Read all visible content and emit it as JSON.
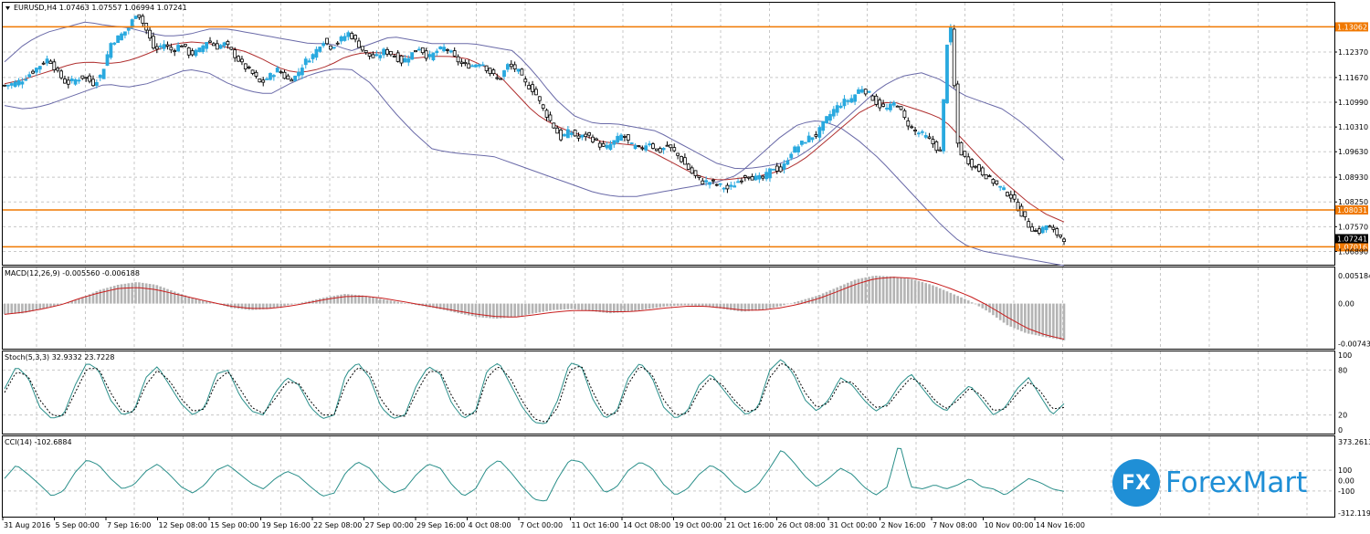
{
  "window": {
    "symbol_header": "EURUSD,H4  1.07463 1.07557 1.06994 1.07241"
  },
  "colors": {
    "bull_candle": "#29a9df",
    "bear_candle": "#000000",
    "bollinger": "#6a6aa8",
    "ma": "#b03030",
    "hline": "#f07800",
    "macd_hist": "#b4b4b4",
    "macd_signal": "#c81e1e",
    "stoch_main": "#2a8f8a",
    "stoch_signal": "#000000",
    "cci": "#2a8f8a",
    "grid": "#c8c8c8",
    "brand": "#1f8fd6"
  },
  "price_pane": {
    "ylim": [
      1.0655,
      1.137
    ],
    "tick_labels": [
      "1.12370",
      "1.11670",
      "1.10990",
      "1.10310",
      "1.09630",
      "1.08930",
      "1.08250",
      "1.07570",
      "1.06890"
    ],
    "tick_values": [
      1.1237,
      1.1167,
      1.1099,
      1.1031,
      1.0963,
      1.0893,
      1.0825,
      1.0757,
      1.0689
    ],
    "hlines": [
      {
        "value": 1.13062,
        "label": "1.13062"
      },
      {
        "value": 1.08031,
        "label": "1.08031"
      },
      {
        "value": 1.07016,
        "label": "1.07016"
      }
    ],
    "current_price": {
      "value": 1.07241,
      "label": "1.07241"
    },
    "close_path": [
      1.1145,
      1.115,
      1.116,
      1.118,
      1.12,
      1.122,
      1.118,
      1.115,
      1.116,
      1.117,
      1.115,
      1.1175,
      1.126,
      1.128,
      1.13,
      1.135,
      1.13,
      1.124,
      1.126,
      1.124,
      1.126,
      1.123,
      1.124,
      1.127,
      1.125,
      1.126,
      1.123,
      1.12,
      1.118,
      1.115,
      1.117,
      1.119,
      1.116,
      1.117,
      1.121,
      1.123,
      1.127,
      1.125,
      1.127,
      1.129,
      1.126,
      1.123,
      1.122,
      1.124,
      1.123,
      1.121,
      1.123,
      1.125,
      1.122,
      1.124,
      1.125,
      1.122,
      1.12,
      1.12,
      1.121,
      1.118,
      1.116,
      1.12,
      1.119,
      1.115,
      1.113,
      1.108,
      1.104,
      1.1,
      1.102,
      1.1,
      1.101,
      1.099,
      1.097,
      1.099,
      1.101,
      1.098,
      1.097,
      1.099,
      1.096,
      1.098,
      1.096,
      1.093,
      1.09,
      1.088,
      1.088,
      1.087,
      1.086,
      1.088,
      1.09,
      1.089,
      1.089,
      1.092,
      1.091,
      1.096,
      1.098,
      1.1,
      1.101,
      1.105,
      1.108,
      1.11,
      1.111,
      1.114,
      1.112,
      1.109,
      1.108,
      1.11,
      1.105,
      1.102,
      1.101,
      1.099,
      1.096,
      1.136,
      1.097,
      1.094,
      1.092,
      1.09,
      1.088,
      1.086,
      1.084,
      1.08,
      1.076,
      1.074,
      1.076,
      1.074,
      1.0724
    ],
    "ma_path": [
      1.115,
      1.116,
      1.1175,
      1.119,
      1.1205,
      1.121,
      1.1205,
      1.121,
      1.1225,
      1.1245,
      1.126,
      1.1265,
      1.126,
      1.125,
      1.124,
      1.122,
      1.1195,
      1.118,
      1.1185,
      1.12,
      1.1225,
      1.1235,
      1.1235,
      1.123,
      1.122,
      1.1225,
      1.1225,
      1.122,
      1.12,
      1.117,
      1.112,
      1.107,
      1.104,
      1.102,
      1.1005,
      1.099,
      1.0985,
      1.098,
      1.096,
      1.0935,
      1.091,
      1.089,
      1.0885,
      1.089,
      1.0895,
      1.0905,
      1.092,
      1.095,
      1.099,
      1.103,
      1.107,
      1.1095,
      1.11,
      1.1085,
      1.107,
      1.105,
      1.1,
      1.095,
      1.09,
      1.086,
      1.082,
      1.079,
      1.077
    ],
    "bb_upper_path": [
      1.121,
      1.126,
      1.129,
      1.1305,
      1.132,
      1.131,
      1.1305,
      1.129,
      1.128,
      1.1285,
      1.13,
      1.13,
      1.129,
      1.128,
      1.127,
      1.126,
      1.126,
      1.124,
      1.126,
      1.128,
      1.127,
      1.126,
      1.126,
      1.126,
      1.125,
      1.124,
      1.118,
      1.111,
      1.106,
      1.104,
      1.104,
      1.103,
      1.102,
      1.099,
      1.096,
      1.093,
      1.0915,
      1.092,
      1.093,
      1.095,
      1.099,
      1.104,
      1.109,
      1.114,
      1.117,
      1.118,
      1.116,
      1.112,
      1.11,
      1.108,
      1.104,
      1.099,
      1.094
    ],
    "bb_lower_path": [
      1.109,
      1.108,
      1.109,
      1.111,
      1.113,
      1.115,
      1.114,
      1.115,
      1.117,
      1.119,
      1.118,
      1.115,
      1.113,
      1.112,
      1.115,
      1.1175,
      1.119,
      1.119,
      1.115,
      1.108,
      1.102,
      1.097,
      1.096,
      1.0955,
      1.095,
      1.093,
      1.091,
      1.089,
      1.087,
      1.085,
      1.084,
      1.084,
      1.085,
      1.086,
      1.087,
      1.088,
      1.09,
      1.095,
      1.1,
      1.104,
      1.105,
      1.103,
      1.099,
      1.094,
      1.088,
      1.082,
      1.076,
      1.071,
      1.069,
      1.068,
      1.067,
      1.066,
      1.065
    ]
  },
  "macd_pane": {
    "title": "MACD(12,26,9) -0.005560 -0.006188",
    "ylim": [
      -0.0082,
      0.0062
    ],
    "tick_labels": [
      "0.005184",
      "0.00",
      "-0.007438"
    ],
    "tick_values": [
      0.005184,
      0,
      -0.007438
    ],
    "hist_path": [
      -0.002,
      -0.0018,
      -0.001,
      -0.0002,
      0.001,
      0.0025,
      0.0035,
      0.004,
      0.0035,
      0.0022,
      0.001,
      0.0002,
      -0.0008,
      -0.0012,
      -0.001,
      -0.0003,
      0.0004,
      0.0012,
      0.0018,
      0.0015,
      0.0008,
      0.0002,
      -0.0004,
      -0.001,
      -0.0018,
      -0.0025,
      -0.0028,
      -0.0025,
      -0.0018,
      -0.0012,
      -0.001,
      -0.0014,
      -0.0018,
      -0.0015,
      -0.001,
      -0.0005,
      -0.0003,
      -0.0005,
      -0.001,
      -0.0015,
      -0.0012,
      -0.0005,
      0.0005,
      0.0015,
      0.003,
      0.0045,
      0.0052,
      0.005,
      0.0045,
      0.0035,
      0.002,
      0.0005,
      -0.0015,
      -0.004,
      -0.0055,
      -0.0062,
      -0.0068
    ],
    "signal_path": [
      -0.002,
      -0.0016,
      -0.001,
      -0.0002,
      0.001,
      0.002,
      0.0028,
      0.003,
      0.0026,
      0.0018,
      0.001,
      0.0002,
      -0.0005,
      -0.0009,
      -0.0009,
      -0.0005,
      0.0001,
      0.0008,
      0.0013,
      0.0014,
      0.001,
      0.0004,
      -0.0002,
      -0.0008,
      -0.0014,
      -0.002,
      -0.0024,
      -0.0025,
      -0.0021,
      -0.0016,
      -0.0013,
      -0.0013,
      -0.0015,
      -0.0015,
      -0.0012,
      -0.0008,
      -0.0005,
      -0.0005,
      -0.0008,
      -0.0012,
      -0.0012,
      -0.0008,
      -0.0001,
      0.0009,
      0.0022,
      0.0036,
      0.0046,
      0.0049,
      0.0047,
      0.004,
      0.0028,
      0.0014,
      -0.0004,
      -0.0025,
      -0.0045,
      -0.0058,
      -0.0066
    ]
  },
  "stoch_pane": {
    "title": "Stoch(5,3,3) 32.9332 23.7228",
    "ylim": [
      0,
      100
    ],
    "tick_labels": [
      "100",
      "80",
      "20",
      "0"
    ],
    "tick_values": [
      100,
      80,
      20,
      0
    ],
    "main_path": [
      55,
      85,
      70,
      30,
      15,
      20,
      60,
      90,
      80,
      40,
      20,
      25,
      70,
      85,
      60,
      35,
      20,
      30,
      75,
      80,
      45,
      25,
      20,
      50,
      70,
      60,
      30,
      15,
      20,
      75,
      90,
      70,
      30,
      15,
      20,
      60,
      85,
      75,
      35,
      15,
      25,
      80,
      90,
      60,
      30,
      10,
      8,
      40,
      90,
      85,
      40,
      15,
      25,
      70,
      90,
      70,
      30,
      15,
      25,
      60,
      75,
      55,
      35,
      20,
      30,
      80,
      95,
      75,
      40,
      25,
      40,
      70,
      60,
      40,
      25,
      35,
      60,
      75,
      55,
      35,
      25,
      45,
      60,
      40,
      20,
      30,
      55,
      70,
      45,
      20,
      35
    ],
    "signal_path": [
      50,
      78,
      72,
      40,
      20,
      18,
      50,
      82,
      82,
      50,
      25,
      24,
      60,
      80,
      66,
      42,
      25,
      28,
      65,
      78,
      55,
      30,
      22,
      42,
      64,
      62,
      38,
      20,
      20,
      62,
      84,
      76,
      40,
      20,
      18,
      50,
      78,
      78,
      45,
      20,
      22,
      70,
      86,
      68,
      38,
      15,
      10,
      30,
      80,
      86,
      50,
      20,
      22,
      62,
      86,
      74,
      40,
      20,
      22,
      52,
      70,
      60,
      40,
      24,
      28,
      70,
      90,
      80,
      50,
      30,
      36,
      64,
      64,
      46,
      30,
      32,
      52,
      70,
      60,
      40,
      28,
      40,
      56,
      46,
      26,
      28,
      48,
      64,
      52,
      28,
      30
    ]
  },
  "cci_pane": {
    "title": "CCI(14) -102.6884",
    "ylim": [
      -320,
      390
    ],
    "tick_labels": [
      "373.2613",
      "100",
      "0.00",
      "-100",
      "-312.1196"
    ],
    "tick_values": [
      373.2613,
      100,
      0,
      -100,
      -312.1196
    ],
    "cci_path": [
      20,
      150,
      60,
      -40,
      -150,
      -100,
      80,
      200,
      150,
      20,
      -80,
      -40,
      90,
      160,
      60,
      -60,
      -120,
      -40,
      100,
      150,
      60,
      -30,
      -80,
      20,
      90,
      40,
      -60,
      -150,
      -120,
      80,
      180,
      120,
      -20,
      -120,
      -80,
      60,
      160,
      120,
      -40,
      -150,
      -80,
      120,
      200,
      80,
      -60,
      -180,
      -200,
      20,
      200,
      180,
      40,
      -120,
      -60,
      100,
      180,
      120,
      -40,
      -140,
      -80,
      60,
      150,
      80,
      -40,
      -120,
      -40,
      120,
      300,
      180,
      40,
      -60,
      20,
      120,
      60,
      -60,
      -140,
      -60,
      373,
      -60,
      -80,
      -40,
      -80,
      -40,
      20,
      -60,
      -80,
      -140,
      -60,
      20,
      -20,
      -80,
      -103
    ]
  },
  "x_axis": {
    "labels": [
      "31 Aug 2016",
      "5 Sep 00:00",
      "7 Sep 16:00",
      "12 Sep 08:00",
      "15 Sep 00:00",
      "19 Sep 16:00",
      "22 Sep 08:00",
      "27 Sep 00:00",
      "29 Sep 16:00",
      "4 Oct 08:00",
      "7 Oct 00:00",
      "11 Oct 16:00",
      "14 Oct 08:00",
      "19 Oct 00:00",
      "21 Oct 16:00",
      "26 Oct 08:00",
      "31 Oct 00:00",
      "2 Nov 16:00",
      "7 Nov 08:00",
      "10 Nov 00:00",
      "14 Nov 16:00"
    ]
  },
  "brand": {
    "logo_mark": "FX",
    "logo_text": "ForexMart"
  }
}
